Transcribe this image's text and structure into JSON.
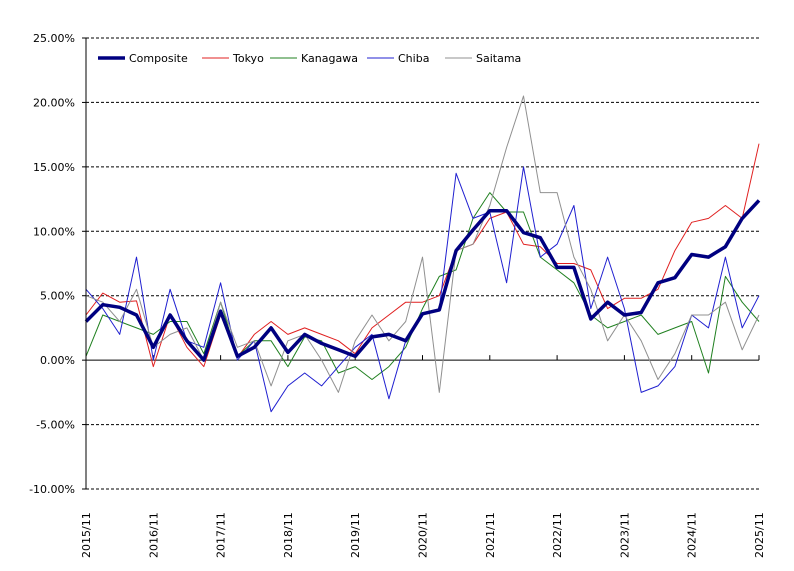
{
  "chart_data": {
    "type": "line",
    "title": "",
    "xlabel": "",
    "ylabel": "",
    "ylim": [
      -10,
      25
    ],
    "ytick_labels": [
      "25.00%",
      "20.00%",
      "15.00%",
      "10.00%",
      "5.00%",
      "0.00%",
      "-5.00%",
      "-10.00%"
    ],
    "ytick_values": [
      25,
      20,
      15,
      10,
      5,
      0,
      -5,
      -10
    ],
    "xtick_labels": [
      "2015/11",
      "2016/11",
      "2017/11",
      "2018/11",
      "2019/11",
      "2020/11",
      "2021/11",
      "2022/11",
      "2023/11",
      "2024/11",
      "2025/11"
    ],
    "x_step": "quarterly from 2015/11 to 2025/11",
    "grid": "horizontal dashed",
    "legend_position": "top-left",
    "series": [
      {
        "name": "Composite",
        "color": "#000080",
        "width": 3.5,
        "values": [
          3.0,
          4.3,
          4.1,
          3.5,
          1.0,
          3.5,
          1.5,
          0.0,
          3.8,
          0.3,
          1.0,
          2.5,
          0.6,
          2.0,
          1.3,
          0.8,
          0.3,
          1.8,
          2.0,
          1.5,
          3.6,
          3.9,
          8.5,
          10.1,
          11.6,
          11.6,
          9.9,
          9.5,
          7.2,
          7.2,
          3.2,
          4.5,
          3.5,
          3.7,
          6.0,
          6.4,
          8.2,
          8.0,
          8.8,
          11.0,
          12.4
        ]
      },
      {
        "name": "Tokyo",
        "color": "#e02020",
        "width": 1,
        "values": [
          3.5,
          5.2,
          4.5,
          4.6,
          -0.5,
          3.5,
          1.0,
          -0.5,
          3.5,
          0.2,
          2.0,
          3.0,
          2.0,
          2.5,
          2.0,
          1.5,
          0.5,
          2.5,
          3.5,
          4.5,
          4.5,
          5.0,
          8.5,
          9.0,
          11.0,
          11.5,
          9.0,
          8.8,
          7.5,
          7.5,
          7.0,
          4.0,
          4.8,
          4.8,
          5.5,
          8.5,
          10.7,
          11.0,
          12.0,
          11.0,
          16.8
        ]
      },
      {
        "name": "Kanagawa",
        "color": "#208020",
        "width": 1,
        "values": [
          0.3,
          3.5,
          3.0,
          2.5,
          2.0,
          3.0,
          3.0,
          0.5,
          4.5,
          0.3,
          1.5,
          1.5,
          -0.5,
          1.8,
          1.5,
          -1.0,
          -0.5,
          -1.5,
          -0.5,
          1.0,
          4.0,
          6.5,
          7.0,
          11.0,
          13.0,
          11.5,
          11.5,
          8.0,
          7.0,
          6.0,
          3.5,
          2.5,
          3.0,
          3.5,
          2.0,
          2.5,
          3.0,
          -1.0,
          6.5,
          4.5,
          3.0
        ]
      },
      {
        "name": "Chiba",
        "color": "#2020d0",
        "width": 1,
        "values": [
          5.5,
          4.0,
          2.0,
          8.0,
          0.0,
          5.5,
          1.5,
          1.0,
          6.0,
          0.0,
          1.5,
          -4.0,
          -2.0,
          -1.0,
          -2.0,
          -0.5,
          1.0,
          2.0,
          -3.0,
          1.5,
          3.5,
          4.0,
          14.5,
          11.0,
          11.5,
          6.0,
          15.0,
          8.0,
          9.0,
          12.0,
          4.0,
          8.0,
          4.0,
          -2.5,
          -2.0,
          -0.5,
          3.5,
          2.5,
          8.0,
          2.5,
          5.0
        ]
      },
      {
        "name": "Saitama",
        "color": "#909090",
        "width": 1,
        "values": [
          5.0,
          4.5,
          3.0,
          5.5,
          1.0,
          2.0,
          2.5,
          0.0,
          4.5,
          1.0,
          1.5,
          -2.0,
          1.5,
          2.0,
          0.0,
          -2.5,
          1.5,
          3.5,
          1.5,
          3.0,
          8.0,
          -2.5,
          8.5,
          9.0,
          12.0,
          16.5,
          20.5,
          13.0,
          13.0,
          8.0,
          5.5,
          1.5,
          3.5,
          1.5,
          -1.5,
          0.5,
          3.5,
          3.5,
          4.5,
          0.8,
          3.5
        ]
      }
    ]
  }
}
